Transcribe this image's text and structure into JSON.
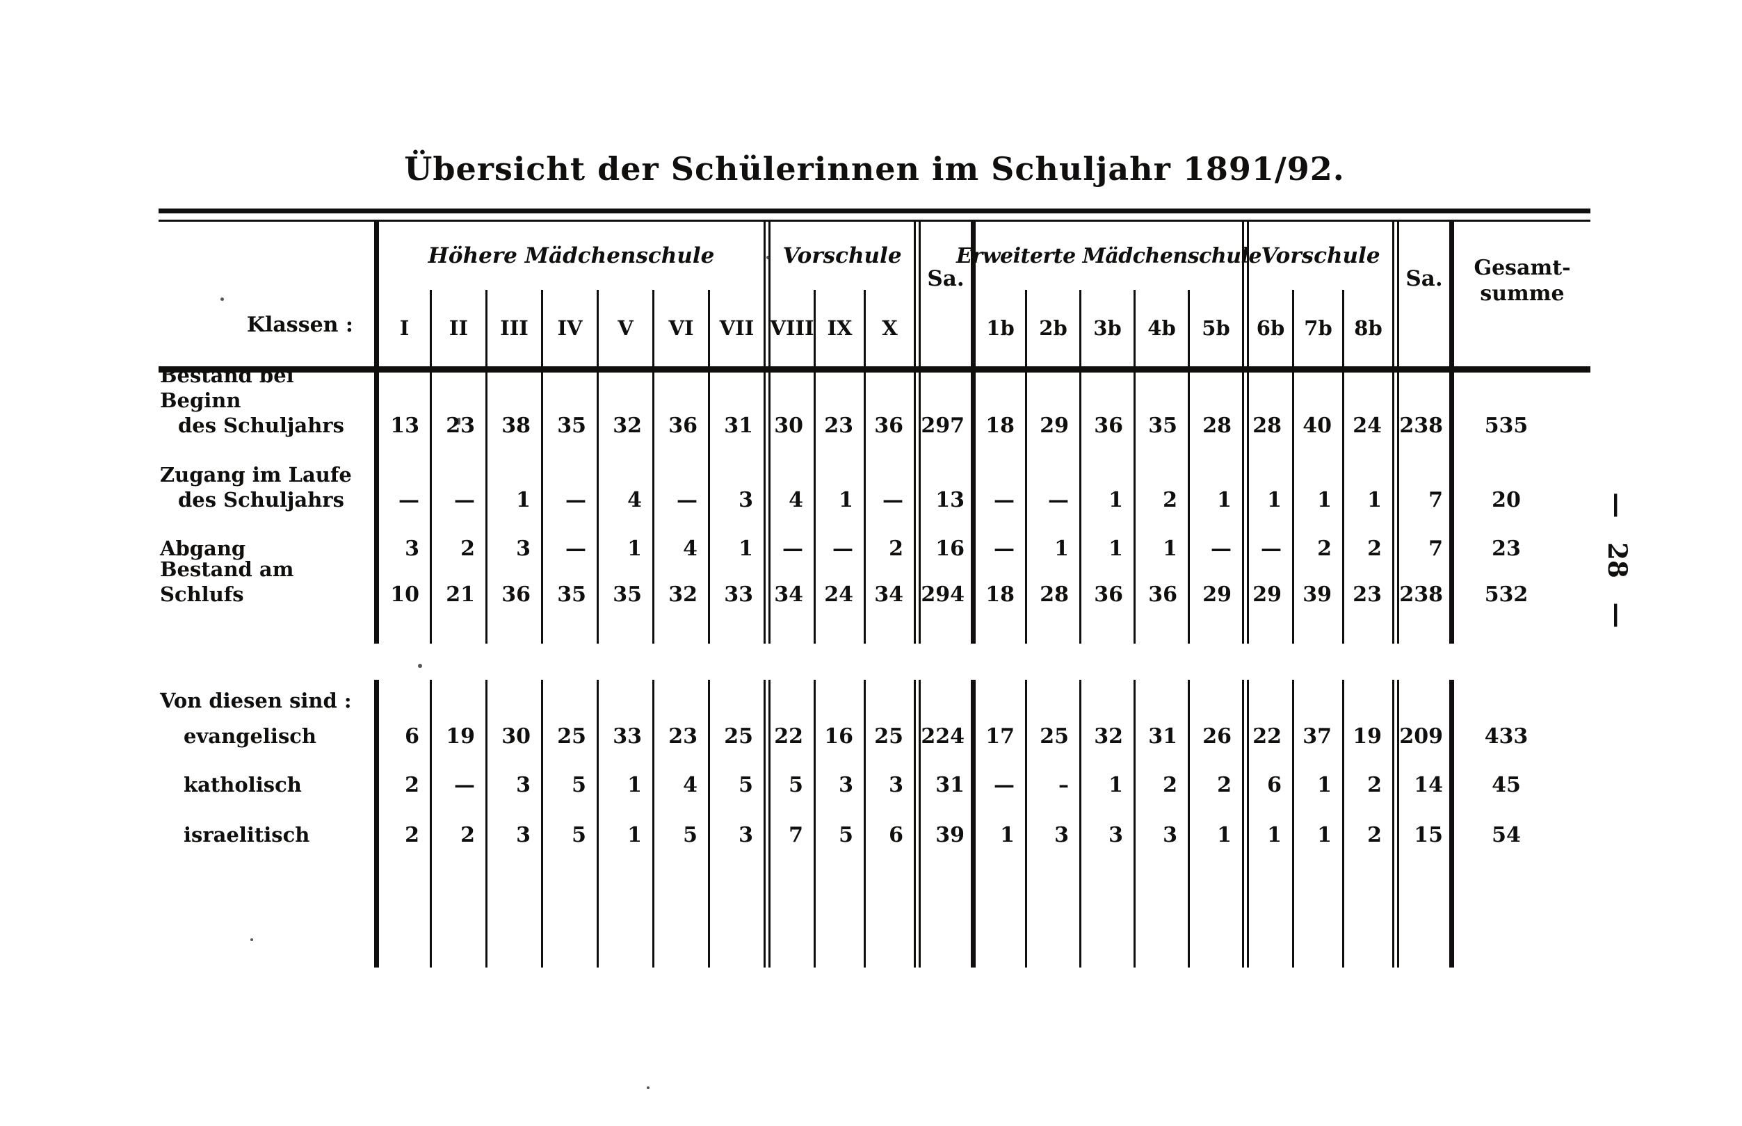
{
  "page": {
    "title": "Übersicht der Schülerinnen im Schuljahr 1891/92.",
    "folio": "— 28 —"
  },
  "table": {
    "klassen_label": "Klassen :",
    "sa1": "Sa.",
    "sa2": "Sa.",
    "gesamt_line1": "Gesamt-",
    "gesamt_line2": "summe",
    "groups": [
      {
        "label": "Höhere Mädchenschule",
        "classes": [
          "I",
          "II",
          "III",
          "IV",
          "V",
          "VI",
          "VII"
        ]
      },
      {
        "label": "Vorschule",
        "classes": [
          "VIII",
          "IX",
          "X"
        ]
      },
      {
        "label": "Erweiterte Mädchenschule",
        "classes": [
          "1b",
          "2b",
          "3b",
          "4b",
          "5b"
        ]
      },
      {
        "label": "Vorschule",
        "classes": [
          "6b",
          "7b",
          "8b"
        ]
      }
    ],
    "body1": {
      "rows": [
        {
          "label": [
            "Bestand bei Beginn",
            "des Schuljahrs"
          ],
          "values": [
            "13",
            "23",
            "38",
            "35",
            "32",
            "36",
            "31",
            "30",
            "23",
            "36",
            "297",
            "18",
            "29",
            "36",
            "35",
            "28",
            "28",
            "40",
            "24",
            "238",
            "535"
          ]
        },
        {
          "label": [
            "Zugang im Laufe",
            "des Schuljahrs"
          ],
          "values": [
            "—",
            "—",
            "1",
            "—",
            "4",
            "—",
            "3",
            "4",
            "1",
            "—",
            "13",
            "—",
            "—",
            "1",
            "2",
            "1",
            "1",
            "1",
            "1",
            "7",
            "20"
          ]
        },
        {
          "label": [
            "Abgang"
          ],
          "values": [
            "3",
            "2",
            "3",
            "—",
            "1",
            "4",
            "1",
            "—",
            "—",
            "2",
            "16",
            "—",
            "1",
            "1",
            "1",
            "—",
            "—",
            "2",
            "2",
            "7",
            "23"
          ]
        },
        {
          "label": [
            "Bestand am Schlufs"
          ],
          "values": [
            "10",
            "21",
            "36",
            "35",
            "35",
            "32",
            "33",
            "34",
            "24",
            "34",
            "294",
            "18",
            "28",
            "36",
            "36",
            "29",
            "29",
            "39",
            "23",
            "238",
            "532"
          ]
        }
      ]
    },
    "body2": {
      "section_label": "Von diesen sind :",
      "rows": [
        {
          "label": [
            "evangelisch"
          ],
          "values": [
            "6",
            "19",
            "30",
            "25",
            "33",
            "23",
            "25",
            "22",
            "16",
            "25",
            "224",
            "17",
            "25",
            "32",
            "31",
            "26",
            "22",
            "37",
            "19",
            "209",
            "433"
          ]
        },
        {
          "label": [
            "katholisch"
          ],
          "values": [
            "2",
            "—",
            "3",
            "5",
            "1",
            "4",
            "5",
            "5",
            "3",
            "3",
            "31",
            "—",
            "–",
            "1",
            "2",
            "2",
            "6",
            "1",
            "2",
            "14",
            "45"
          ]
        },
        {
          "label": [
            "israelitisch"
          ],
          "values": [
            "2",
            "2",
            "3",
            "5",
            "1",
            "5",
            "3",
            "7",
            "5",
            "6",
            "39",
            "1",
            "3",
            "3",
            "3",
            "1",
            "1",
            "1",
            "2",
            "15",
            "54"
          ]
        }
      ]
    }
  }
}
